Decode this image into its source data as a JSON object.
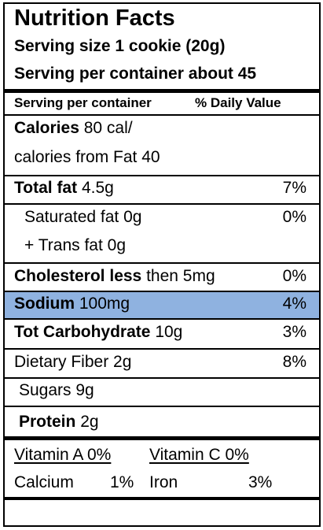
{
  "header": {
    "title": "Nutrition Facts",
    "serving_size": "Serving size 1 cookie (20g)",
    "servings_per_container": "Serving per container about 45"
  },
  "column_headers": {
    "left": "Serving per container",
    "right": "% Daily Value"
  },
  "calories": {
    "label": "Calories",
    "value": "80 cal/",
    "from_fat": "calories from Fat 40"
  },
  "nutrients": {
    "total_fat": {
      "label": "Total fat",
      "amount": "4.5g",
      "dv": "7%"
    },
    "saturated_fat": {
      "label": "Saturated fat 0g",
      "dv": "0%"
    },
    "trans_fat": {
      "label": "+ Trans fat 0g"
    },
    "cholesterol": {
      "label": "Cholesterol less",
      "amount": "then 5mg",
      "dv": "0%"
    },
    "sodium": {
      "label": "Sodium",
      "amount": "100mg",
      "dv": "4%",
      "highlight_color": "#8fb2e0"
    },
    "carbohydrate": {
      "label": "Tot Carbohydrate",
      "amount": "10g",
      "dv": "3%"
    },
    "fiber": {
      "label": "Dietary Fiber  2g",
      "dv": "8%"
    },
    "sugars": {
      "label": "Sugars 9g"
    },
    "protein": {
      "label": "Protein",
      "amount": "2g"
    }
  },
  "vitamins": {
    "vitamin_a": "Vitamin A 0%",
    "vitamin_c": "Vitamin C 0%",
    "calcium_label": "Calcium",
    "calcium_dv": "1%",
    "iron_label": "Iron",
    "iron_dv": "3%"
  }
}
